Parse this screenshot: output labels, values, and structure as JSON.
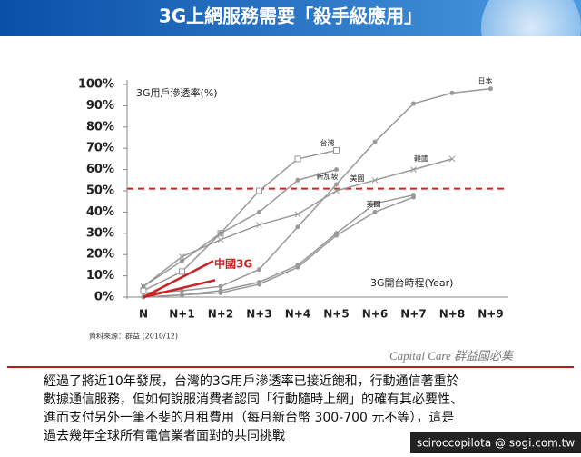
{
  "header": {
    "title": "3G上網服務需要「殺手級應用」"
  },
  "chart_data": {
    "type": "line",
    "y_label": "3G用戶滲透率(%)",
    "x_label": "3G開台時程(Year)",
    "source": "資料來源：群益 (2010/12)",
    "categories": [
      "N",
      "N+1",
      "N+2",
      "N+3",
      "N+4",
      "N+5",
      "N+6",
      "N+7",
      "N+8",
      "N+9"
    ],
    "ylim": [
      0,
      100
    ],
    "yticks": [
      {
        "value": 0,
        "label": "0%"
      },
      {
        "value": 10,
        "label": "10%"
      },
      {
        "value": 20,
        "label": "20%"
      },
      {
        "value": 30,
        "label": "30%"
      },
      {
        "value": 40,
        "label": "40%"
      },
      {
        "value": 50,
        "label": "50%"
      },
      {
        "value": 60,
        "label": "60%"
      },
      {
        "value": 70,
        "label": "70%"
      },
      {
        "value": 80,
        "label": "80%"
      },
      {
        "value": 90,
        "label": "90%"
      },
      {
        "value": 100,
        "label": "100%"
      }
    ],
    "reference_line": {
      "value": 51,
      "color": "#cc2222"
    },
    "annotation": {
      "text": "中國3G",
      "color": "#cc2222"
    },
    "series": [
      {
        "name": "日本",
        "color": "#999999",
        "values": [
          2,
          3,
          5,
          13,
          33,
          53,
          73,
          91,
          96,
          98
        ]
      },
      {
        "name": "台灣",
        "color": "#999999",
        "values": [
          3,
          12,
          30,
          50,
          65,
          69,
          null,
          null,
          null,
          null
        ]
      },
      {
        "name": "新加坡",
        "color": "#999999",
        "values": [
          5,
          17,
          30,
          40,
          55,
          60,
          null,
          null,
          null,
          null
        ]
      },
      {
        "name": "韓國",
        "color": "#999999",
        "values": [
          5,
          19,
          27,
          34,
          39,
          50,
          55,
          60,
          65,
          null
        ]
      },
      {
        "name": "美國",
        "color": "#999999",
        "values": [
          0,
          1,
          3,
          7,
          15,
          30,
          44,
          48,
          null,
          null
        ]
      },
      {
        "name": "英國",
        "color": "#999999",
        "values": [
          0,
          1,
          2,
          6,
          14,
          29,
          40,
          47,
          null,
          null
        ]
      }
    ]
  },
  "logo": "Capital Care 群益國必集",
  "body": {
    "lines": [
      "經過了將近10年發展，台灣的3G用戶滲透率已接近飽和，行動通信著重於",
      "數據通信服務，但如何說服消費者認同「行動隨時上網」的確有其必要性、",
      "進而支付另外一筆不斐的月租費用（每月新台幣 300-700 元不等），這是",
      "過去幾年全球所有電信業者面對的共同挑戰"
    ]
  },
  "watermark": "sciroccopilota @ sogi.com.tw"
}
